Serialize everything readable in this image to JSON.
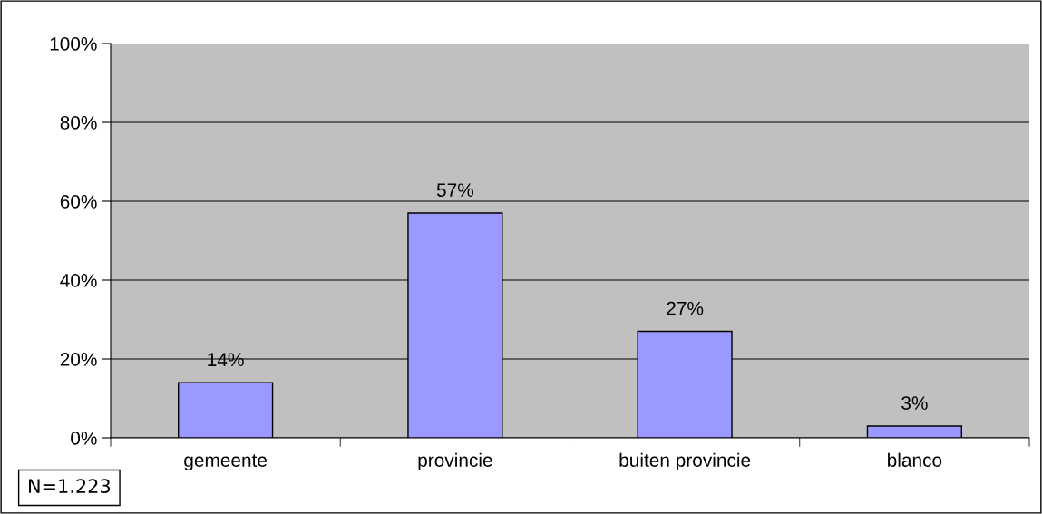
{
  "chart_data": {
    "type": "bar",
    "categories": [
      "gemeente",
      "provincie",
      "buiten provincie",
      "blanco"
    ],
    "values": [
      14,
      57,
      27,
      3
    ],
    "color": "#9999ff",
    "ylim": [
      0,
      100
    ],
    "yticks": [
      {
        "value": 0,
        "label": "0%"
      },
      {
        "value": 20,
        "label": "20%"
      },
      {
        "value": 40,
        "label": "40%"
      },
      {
        "value": 60,
        "label": "60%"
      },
      {
        "value": 80,
        "label": "80%"
      },
      {
        "value": 100,
        "label": "100%"
      }
    ],
    "grid": "y",
    "value_labels": [
      "14%",
      "57%",
      "27%",
      "3%"
    ],
    "legend": false,
    "annotations": [
      "N=1.223"
    ]
  }
}
